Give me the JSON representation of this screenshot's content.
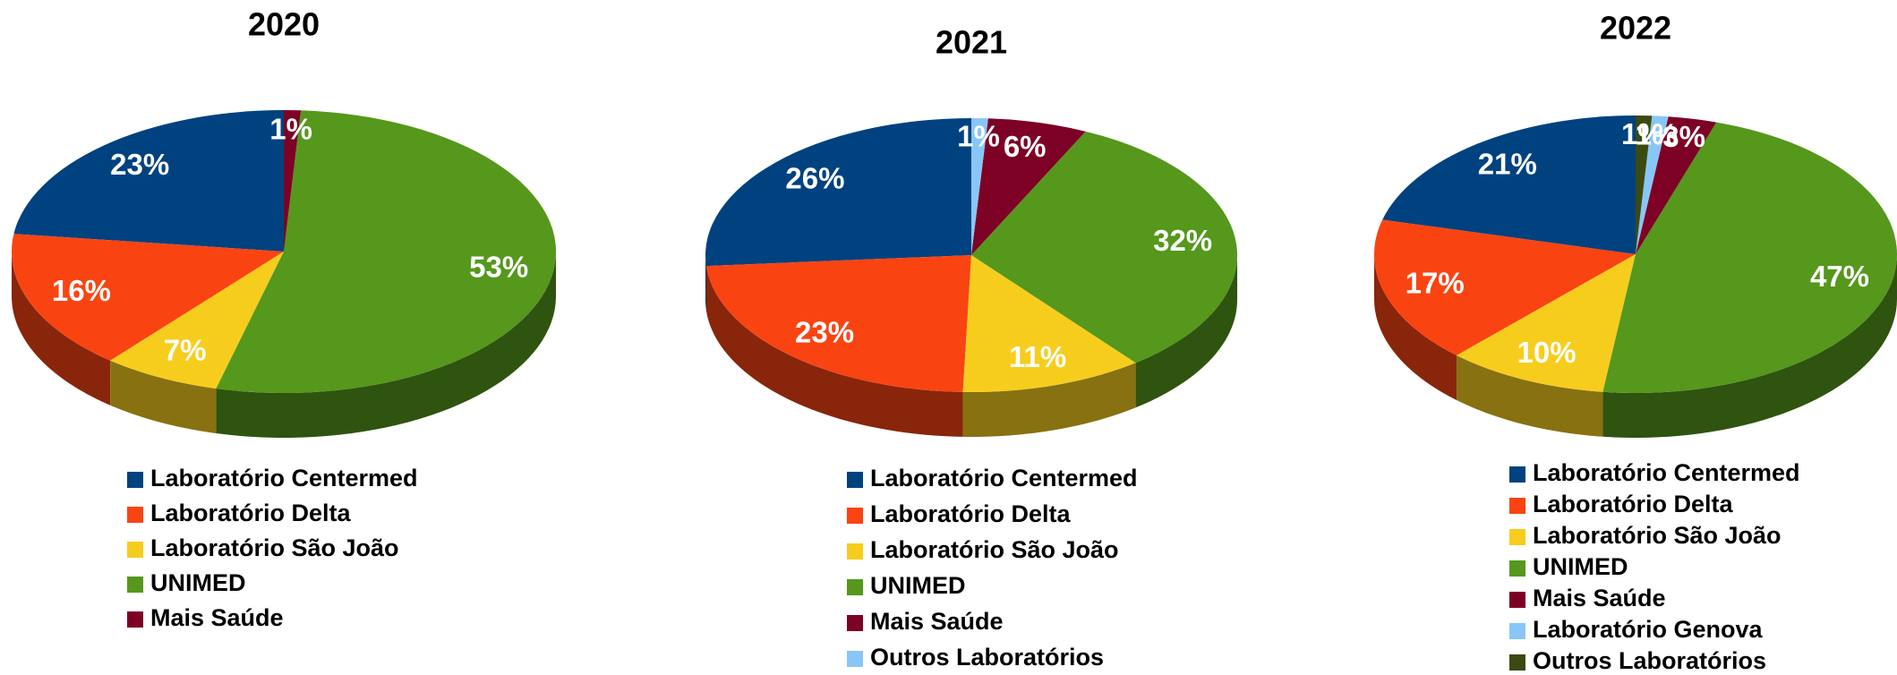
{
  "chart_data": [
    {
      "type": "pie",
      "title": "2020",
      "categories": [
        "Laboratório Centermed",
        "Laboratório Delta",
        "Laboratório São João",
        "UNIMED",
        "Mais Saúde"
      ],
      "values": [
        23,
        16,
        7,
        53,
        1
      ],
      "value_labels": [
        "23%",
        "16%",
        "7%",
        "53%",
        "1%"
      ],
      "colors": [
        "#00427f",
        "#f94412",
        "#f7cd1d",
        "#55981c",
        "#7d0125"
      ]
    },
    {
      "type": "pie",
      "title": "2021",
      "categories": [
        "Laboratório Centermed",
        "Laboratório Delta",
        "Laboratório São João",
        "UNIMED",
        "Mais Saúde",
        "Outros Laboratórios"
      ],
      "values": [
        26,
        23,
        11,
        32,
        6,
        1
      ],
      "value_labels": [
        "26%",
        "23%",
        "11%",
        "32%",
        "6%",
        "1%"
      ],
      "colors": [
        "#00427f",
        "#f94412",
        "#f7cd1d",
        "#55981c",
        "#7d0125",
        "#89c6f7"
      ]
    },
    {
      "type": "pie",
      "title": "2022",
      "categories": [
        "Laboratório Centermed",
        "Laboratório Delta",
        "Laboratório São João",
        "UNIMED",
        "Mais Saúde",
        "Laboratório Genova",
        "Outros Laboratórios"
      ],
      "values": [
        21,
        17,
        10,
        47,
        3,
        1,
        1
      ],
      "value_labels": [
        "21%",
        "17%",
        "10%",
        "47%",
        "3%",
        "1%",
        "1%"
      ],
      "colors": [
        "#00427f",
        "#f94412",
        "#f7cd1d",
        "#55981c",
        "#7d0125",
        "#89c6f7",
        "#3b4a12"
      ]
    }
  ]
}
